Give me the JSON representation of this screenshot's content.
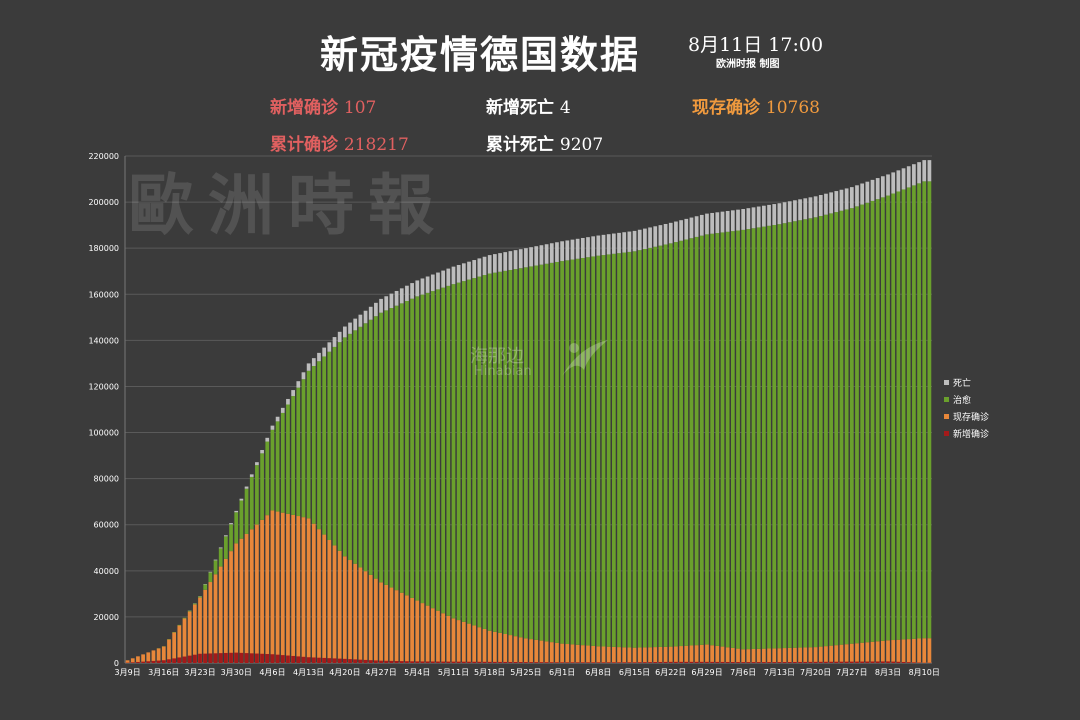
{
  "header": {
    "title": "新冠疫情德国数据",
    "date": "8月11日  17:00",
    "credit": "欧洲时报 制图"
  },
  "stats": {
    "new_confirmed_label": "新增确诊",
    "new_confirmed_value": "107",
    "new_deaths_label": "新增死亡",
    "new_deaths_value": "4",
    "active_label": "现存确诊",
    "active_value": "10768",
    "total_confirmed_label": "累计确诊",
    "total_confirmed_value": "218217",
    "total_deaths_label": "累计死亡",
    "total_deaths_value": "9207"
  },
  "watermark": {
    "text1": "歐洲時報",
    "text2": "海那边",
    "text3": "Hinabian"
  },
  "colors": {
    "death": "#bdbdbd",
    "recovered": "#6aa02c",
    "active": "#e8873a",
    "new": "#a31a1a",
    "grid": "#5a5a5a"
  },
  "chart_data": {
    "type": "bar",
    "stacked": true,
    "ylim": [
      0,
      220000
    ],
    "yticks": [
      0,
      20000,
      40000,
      60000,
      80000,
      100000,
      120000,
      140000,
      160000,
      180000,
      200000,
      220000
    ],
    "xticks": [
      "3月9日",
      "3月16日",
      "3月23日",
      "3月30日",
      "4月6日",
      "4月13日",
      "4月20日",
      "4月27日",
      "5月4日",
      "5月11日",
      "5月18日",
      "5月25日",
      "6月1日",
      "6月8日",
      "6月15日",
      "6月22日",
      "6月29日",
      "7月6日",
      "7月13日",
      "7月20日",
      "7月27日",
      "8月3日",
      "8月10日"
    ],
    "grid": true,
    "legend_position": "right",
    "series_names": [
      "死亡",
      "治愈",
      "现存确诊",
      "新增确诊"
    ],
    "sample_days": [
      {
        "day": "3月9日",
        "total": 1200,
        "recovered": 20,
        "deaths": 2,
        "new": 150
      },
      {
        "day": "3月16日",
        "total": 7300,
        "recovered": 100,
        "deaths": 17,
        "new": 1200
      },
      {
        "day": "3月23日",
        "total": 29000,
        "recovered": 450,
        "deaths": 120,
        "new": 4000
      },
      {
        "day": "3月30日",
        "total": 66000,
        "recovered": 13500,
        "deaths": 600,
        "new": 4500
      },
      {
        "day": "4月6日",
        "total": 103000,
        "recovered": 35000,
        "deaths": 1800,
        "new": 3800
      },
      {
        "day": "4月13日",
        "total": 130000,
        "recovered": 64000,
        "deaths": 3200,
        "new": 2500
      },
      {
        "day": "4月20日",
        "total": 146000,
        "recovered": 95000,
        "deaths": 4700,
        "new": 1800
      },
      {
        "day": "4月27日",
        "total": 158000,
        "recovered": 117000,
        "deaths": 6000,
        "new": 1000
      },
      {
        "day": "5月4日",
        "total": 166000,
        "recovered": 132000,
        "deaths": 6900,
        "new": 700
      },
      {
        "day": "5月11日",
        "total": 172000,
        "recovered": 145000,
        "deaths": 7600,
        "new": 600
      },
      {
        "day": "5月18日",
        "total": 177000,
        "recovered": 155000,
        "deaths": 8000,
        "new": 500
      },
      {
        "day": "5月25日",
        "total": 180000,
        "recovered": 161000,
        "deaths": 8300,
        "new": 400
      },
      {
        "day": "6月1日",
        "total": 183000,
        "recovered": 166000,
        "deaths": 8600,
        "new": 300
      },
      {
        "day": "6月8日",
        "total": 185500,
        "recovered": 169500,
        "deaths": 8750,
        "new": 300
      },
      {
        "day": "6月15日",
        "total": 187500,
        "recovered": 172000,
        "deaths": 8850,
        "new": 300
      },
      {
        "day": "6月22日",
        "total": 191000,
        "recovered": 175000,
        "deaths": 8900,
        "new": 500
      },
      {
        "day": "6月29日",
        "total": 195000,
        "recovered": 178000,
        "deaths": 9000,
        "new": 500
      },
      {
        "day": "7月6日",
        "total": 197000,
        "recovered": 182000,
        "deaths": 9050,
        "new": 400
      },
      {
        "day": "7月13日",
        "total": 199500,
        "recovered": 184000,
        "deaths": 9080,
        "new": 400
      },
      {
        "day": "7月20日",
        "total": 202500,
        "recovered": 186500,
        "deaths": 9100,
        "new": 500
      },
      {
        "day": "7月27日",
        "total": 206500,
        "recovered": 189000,
        "deaths": 9130,
        "new": 600
      },
      {
        "day": "8月3日",
        "total": 212000,
        "recovered": 193000,
        "deaths": 9160,
        "new": 700
      },
      {
        "day": "8月10日",
        "total": 218217,
        "recovered": 198242,
        "deaths": 9207,
        "new": 107
      }
    ]
  }
}
